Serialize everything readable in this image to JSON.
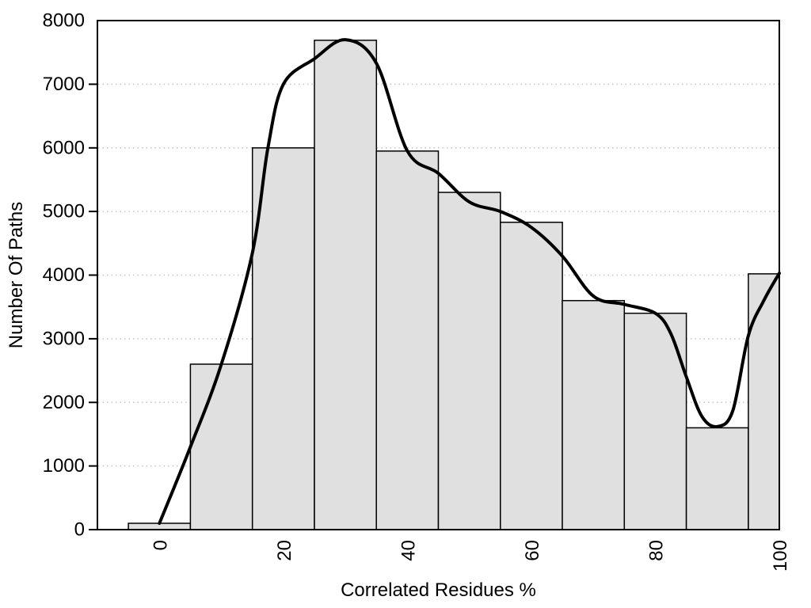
{
  "figure": {
    "background": "#ffffff"
  },
  "chart_data": {
    "type": "bar",
    "variant": "histogram with smoothed density curve overlay",
    "title": "",
    "xlabel": "Correlated Residues %",
    "ylabel": "Number Of Paths",
    "xlim": [
      -10,
      100
    ],
    "ylim": [
      0,
      8000
    ],
    "x_ticks": [
      0,
      20,
      40,
      60,
      80,
      100
    ],
    "y_ticks": [
      0,
      1000,
      2000,
      3000,
      4000,
      5000,
      6000,
      7000,
      8000
    ],
    "x_tick_rotation_deg": -90,
    "grid": {
      "horizontal": true,
      "vertical": false,
      "style": "dotted",
      "color": "#c4c4c4"
    },
    "bin_width": 10,
    "categories": [
      0,
      10,
      20,
      30,
      40,
      50,
      60,
      70,
      80,
      90,
      100
    ],
    "values": [
      100,
      2600,
      6000,
      7690,
      5950,
      5300,
      4830,
      3600,
      3400,
      1600,
      4020
    ],
    "last_bin_clipped_at_x": 100,
    "bar_fill": "#e0e0e0",
    "bar_stroke": "#000000",
    "axis_color": "#000000",
    "series": [
      {
        "name": "paths-per-bin",
        "type": "bar"
      },
      {
        "name": "smoothed-curve",
        "type": "line",
        "color": "#000000",
        "points": [
          [
            0,
            100
          ],
          [
            5,
            1300
          ],
          [
            10,
            2600
          ],
          [
            15,
            4350
          ],
          [
            17.5,
            6000
          ],
          [
            20,
            7000
          ],
          [
            25,
            7400
          ],
          [
            30,
            7700
          ],
          [
            35,
            7330
          ],
          [
            40,
            5950
          ],
          [
            45,
            5600
          ],
          [
            50,
            5150
          ],
          [
            55,
            5000
          ],
          [
            60,
            4750
          ],
          [
            65,
            4300
          ],
          [
            70,
            3670
          ],
          [
            75,
            3540
          ],
          [
            80,
            3400
          ],
          [
            82.5,
            3080
          ],
          [
            85,
            2400
          ],
          [
            87.5,
            1780
          ],
          [
            90,
            1620
          ],
          [
            92.5,
            1870
          ],
          [
            95,
            3050
          ],
          [
            97.5,
            3600
          ],
          [
            100,
            4030
          ]
        ]
      }
    ],
    "legend": {
      "visible": false
    }
  }
}
